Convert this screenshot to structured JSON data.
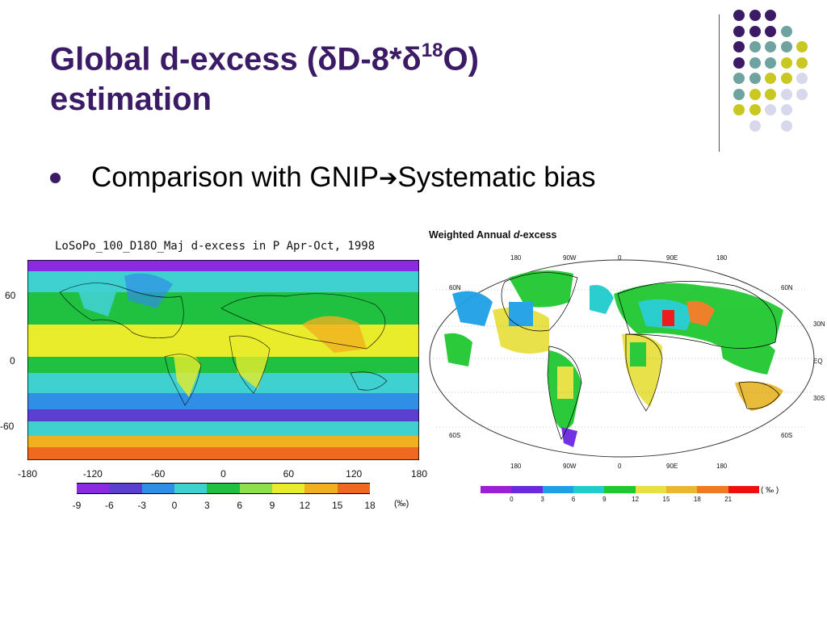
{
  "slide": {
    "title_part1": "Global d-excess (δD-8*δ",
    "title_sup": "18",
    "title_part2": "O)",
    "title_line2": "estimation",
    "bullet_part1": "Comparison with GNIP ",
    "bullet_arrow": "➔",
    "bullet_part2": " Systematic bias"
  },
  "left_figure": {
    "title": "LoSoPo_100_D18O_Maj d-excess in P Apr-Oct, 1998",
    "y_ticks": [
      "60",
      "0",
      "-60"
    ],
    "x_ticks": [
      "-180",
      "-120",
      "-60",
      "0",
      "60",
      "120",
      "180"
    ],
    "colorbar_labels": [
      "-9",
      "-6",
      "-3",
      "0",
      "3",
      "6",
      "9",
      "12",
      "15",
      "18"
    ],
    "colorbar_unit": "(‰)",
    "colorbar_colors": [
      "#8a2be2",
      "#5a3fd0",
      "#2f8fe6",
      "#3fd0d0",
      "#20c040",
      "#8ee04a",
      "#e8ec2a",
      "#f0b020",
      "#ef6a20"
    ]
  },
  "right_figure": {
    "title_part1": "Weighted Annual ",
    "title_italic": "d",
    "title_part2": "-excess",
    "top_ticks": [
      "180",
      "90W",
      "0",
      "90E",
      "180"
    ],
    "bottom_ticks": [
      "180",
      "90W",
      "0",
      "90E",
      "180"
    ],
    "left_lat": [
      "60N",
      "60S"
    ],
    "right_lat": [
      "60N",
      "30N",
      "EQ",
      "30S",
      "60S"
    ],
    "colorbar_labels": [
      "0",
      "3",
      "6",
      "9",
      "12",
      "15",
      "18",
      "21"
    ],
    "colorbar_unit": "( ‰ )",
    "colorbar_colors": [
      "#9b1fd6",
      "#6a28e0",
      "#1ea0e6",
      "#20cccc",
      "#20c830",
      "#e8e040",
      "#e8b830",
      "#ef7a20",
      "#ee1010"
    ]
  },
  "decoration": {
    "colors": {
      "purple": "#3b1a66",
      "teal": "#6fa3a0",
      "olive": "#c8c820",
      "lavender": "#d8d8ec"
    }
  }
}
